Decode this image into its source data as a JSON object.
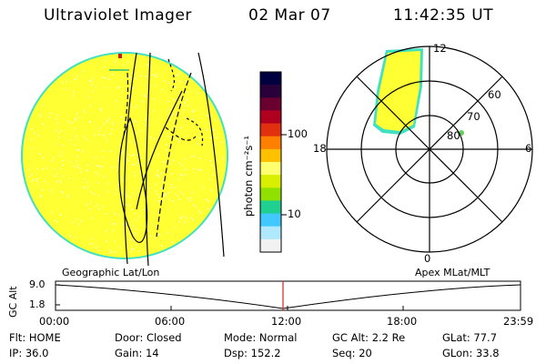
{
  "header": {
    "instrument": "Ultraviolet Imager",
    "date": "02 Mar 07",
    "time": "11:42:35 UT"
  },
  "colorbar": {
    "label": "photon cm⁻²s⁻¹",
    "ticks": [
      "100",
      "10"
    ],
    "colors": [
      "#000040",
      "#2a003a",
      "#6a0030",
      "#b00020",
      "#e03010",
      "#ff8000",
      "#ffc000",
      "#ffff70",
      "#d8f000",
      "#90e000",
      "#20d090",
      "#40c8ff",
      "#b0e8ff",
      "#f2f2f2"
    ]
  },
  "polar_plot": {
    "mlt_labels": [
      "12",
      "18",
      "6",
      "0"
    ],
    "lat_labels": [
      "60",
      "70",
      "80"
    ]
  },
  "altitude_track": {
    "left_label": "Geographic Lat/Lon",
    "right_label": "Apex MLat/MLT",
    "axis_title": "GC Alt",
    "y_ticks": [
      "9.0",
      "1.8"
    ],
    "x_ticks": [
      "00:00",
      "06:00",
      "12:00",
      "18:00",
      "23:59"
    ]
  },
  "status": {
    "flt": "Flt: HOME",
    "door": "Door: Closed",
    "mode": "Mode: Normal",
    "gc_alt": "GC Alt: 2.2 Re",
    "glat": "GLat:  77.7",
    "ip": "IP: 36.0",
    "gain": "Gain: 14",
    "dsp": "Dsp:  152.2",
    "seq": "Seq: 20",
    "glon": "GLon:  33.8"
  },
  "colors": {
    "disk_fill": "#ffff33",
    "disk_edge": "#40e0c0",
    "marker": "#e02020"
  }
}
